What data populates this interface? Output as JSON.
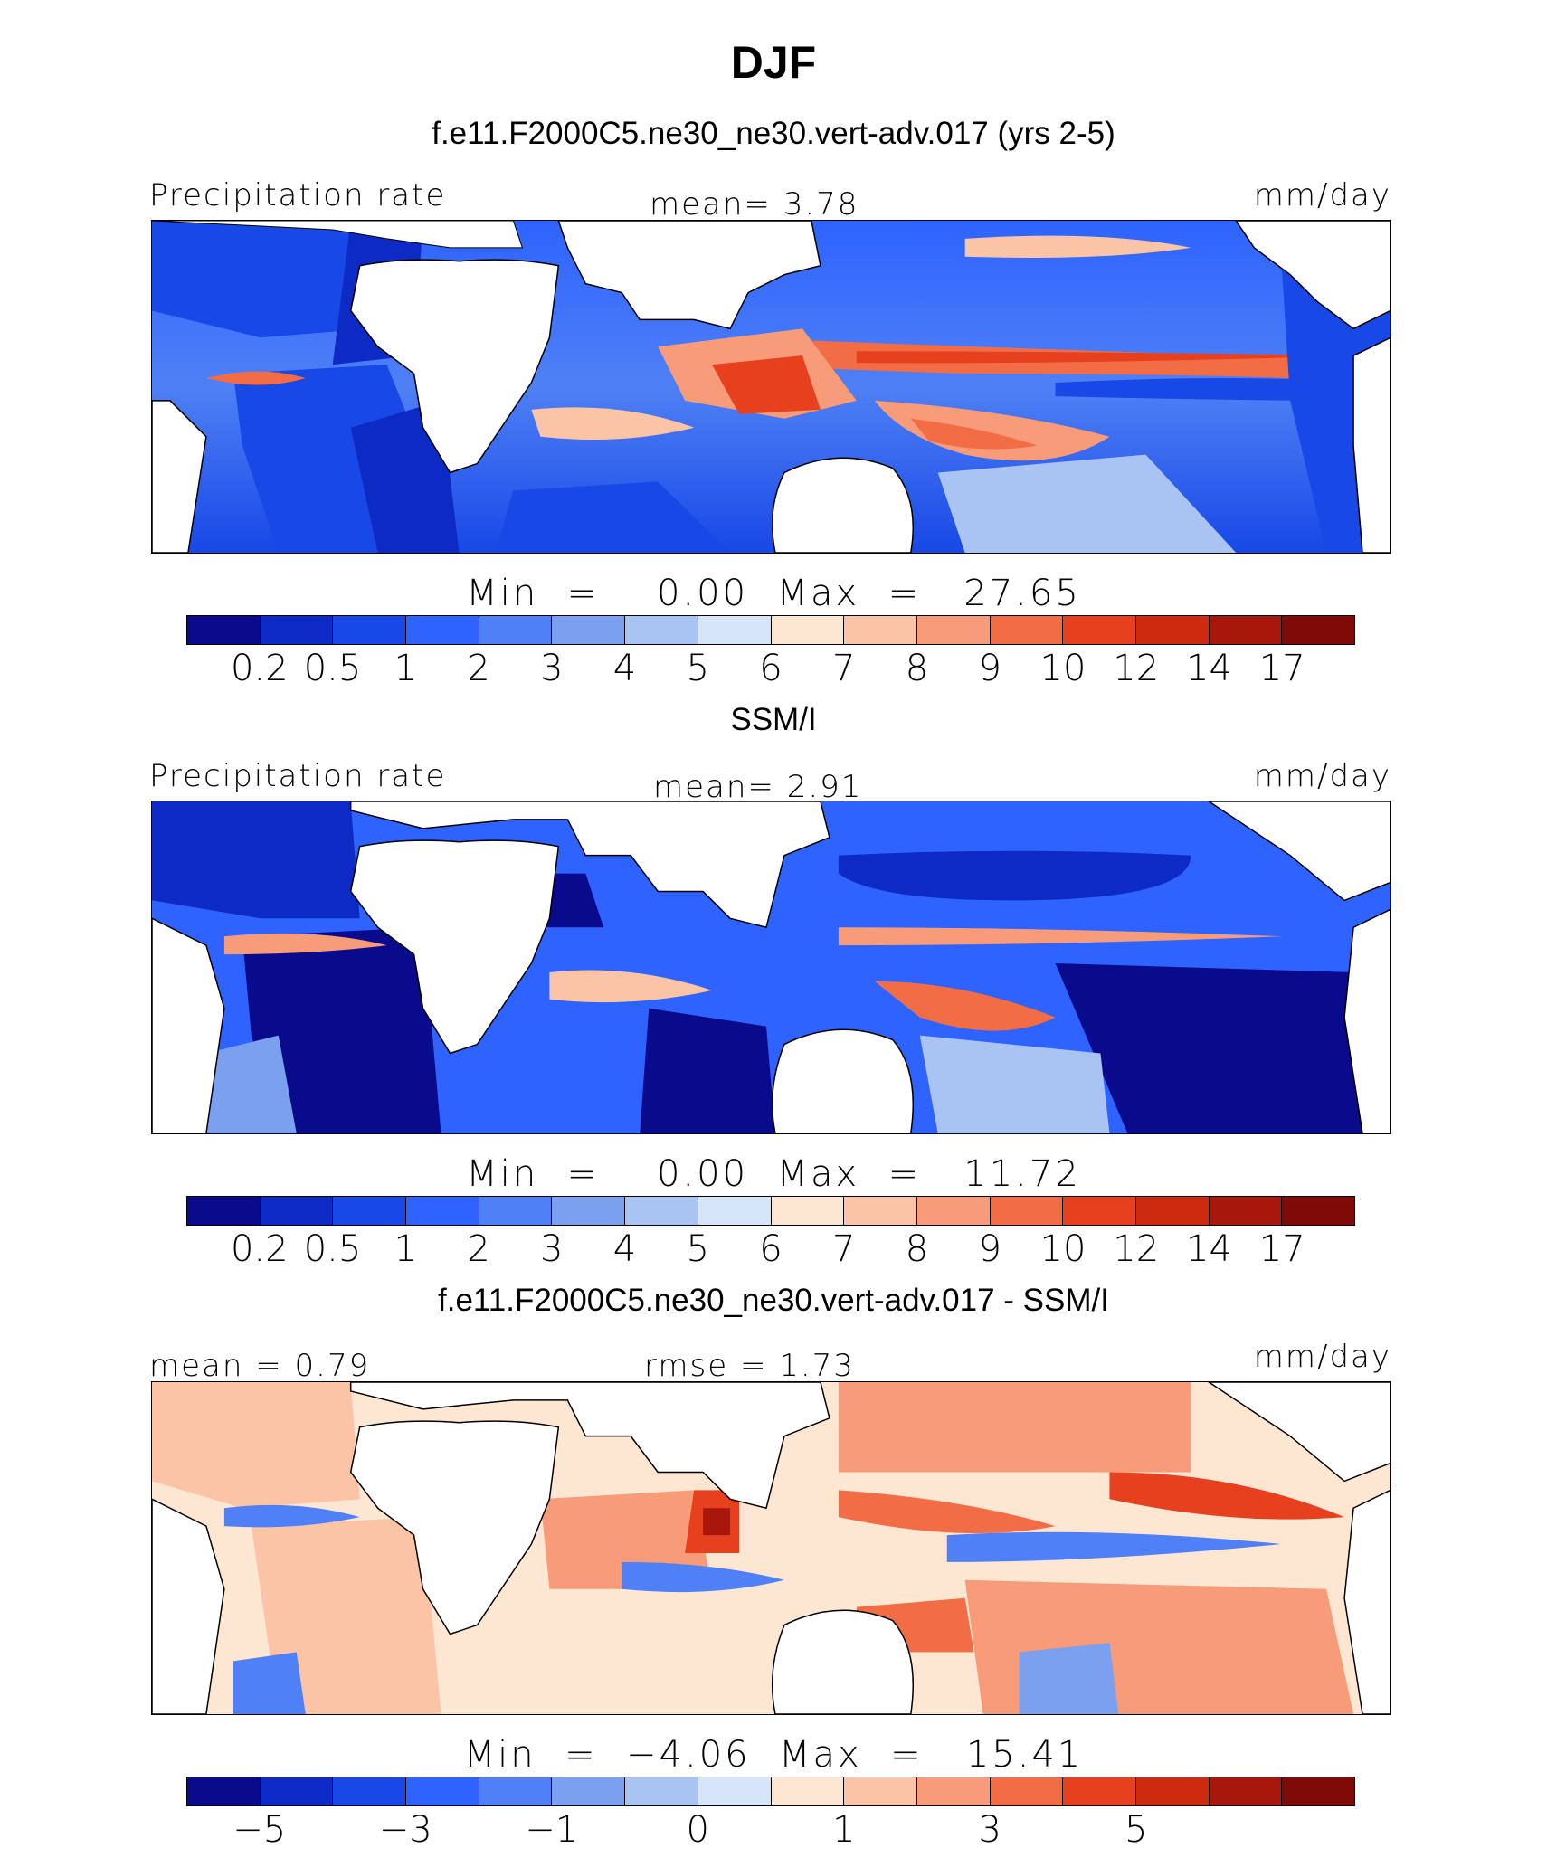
{
  "title": "DJF",
  "panels": [
    {
      "subtitle": "f.e11.F2000C5.ne30_ne30.vert-adv.017 (yrs 2-5)",
      "left_label": "Precipitation rate",
      "center_label": "mean=   3.78",
      "right_label": "mm/day",
      "minmax": "Min  =    0.00  Max  =   27.65",
      "colorbar_ticks": [
        "0.2",
        "0.5",
        "1",
        "2",
        "3",
        "4",
        "5",
        "6",
        "7",
        "8",
        "9",
        "10",
        "12",
        "14",
        "17"
      ]
    },
    {
      "subtitle": "SSM/I",
      "left_label": "Precipitation rate",
      "center_label": "mean=   2.91",
      "right_label": "mm/day",
      "minmax": "Min  =    0.00  Max  =   11.72",
      "colorbar_ticks": [
        "0.2",
        "0.5",
        "1",
        "2",
        "3",
        "4",
        "5",
        "6",
        "7",
        "8",
        "9",
        "10",
        "12",
        "14",
        "17"
      ]
    },
    {
      "subtitle": "f.e11.F2000C5.ne30_ne30.vert-adv.017 - SSM/I",
      "left_label": "mean =   0.79",
      "center_label": "rmse  =   1.73",
      "right_label": "mm/day",
      "minmax": "Min  =  −4.06  Max  =   15.41",
      "colorbar_ticks": [
        "−5",
        "−3",
        "−1",
        "0",
        "1",
        "3",
        "5"
      ]
    }
  ],
  "colorbar_colors": [
    "#0a0a8c",
    "#0d2bc4",
    "#1848e6",
    "#2e63ff",
    "#4f80f5",
    "#7aa0ef",
    "#a9c3f3",
    "#d6e5f7",
    "#fde6d2",
    "#fbc4a6",
    "#f89b78",
    "#f26c45",
    "#e6401e",
    "#cd2a10",
    "#a8170b",
    "#7f0a08"
  ]
}
